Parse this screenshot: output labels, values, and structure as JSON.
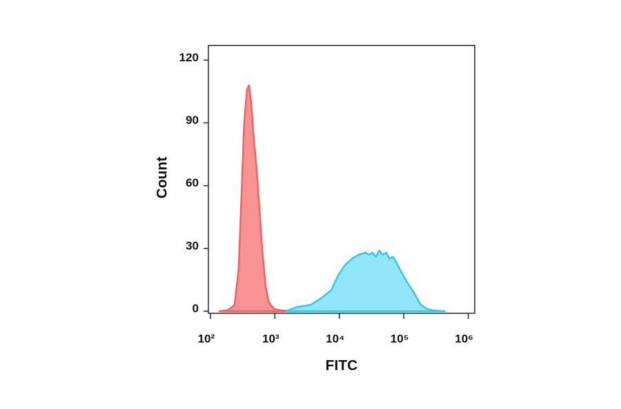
{
  "chart_data": {
    "type": "area",
    "x_label": "FITC",
    "y_label": "Count",
    "xscale": "log",
    "xlim": [
      93,
      1260000
    ],
    "ylim": [
      -1,
      127
    ],
    "xticks": [
      {
        "value": 100,
        "label": "10²"
      },
      {
        "value": 1000,
        "label": "10³"
      },
      {
        "value": 10000,
        "label": "10⁴"
      },
      {
        "value": 100000,
        "label": "10⁵"
      },
      {
        "value": 1000000,
        "label": "10⁶"
      }
    ],
    "yticks": [
      0,
      30,
      60,
      90,
      120
    ],
    "series": [
      {
        "color": "#f06262",
        "fill": "#f99393",
        "x": [
          138,
          185,
          237,
          274,
          303,
          334,
          369,
          397,
          428,
          472,
          521,
          574,
          634,
          718,
          811,
          988,
          1327,
          2173
        ],
        "values": [
          0,
          0.5,
          3,
          20,
          55,
          90,
          106,
          108,
          100,
          82,
          68,
          50,
          30,
          12,
          4,
          1,
          0.3,
          0
        ]
      },
      {
        "color": "#2fc8ef",
        "fill": "#93e6fa",
        "x": [
          1500,
          2170,
          3560,
          5140,
          7450,
          9530,
          12190,
          15600,
          19900,
          25500,
          29000,
          32600,
          37000,
          41700,
          47000,
          53300,
          60000,
          68200,
          87300,
          111700,
          142900,
          182800,
          233900,
          299200,
          432900
        ],
        "values": [
          0,
          2,
          3,
          6,
          10,
          17,
          22,
          25,
          27,
          28,
          27,
          28,
          26,
          29,
          27,
          28,
          25,
          26,
          20,
          14,
          9,
          3,
          1,
          0.3,
          0
        ]
      }
    ]
  }
}
